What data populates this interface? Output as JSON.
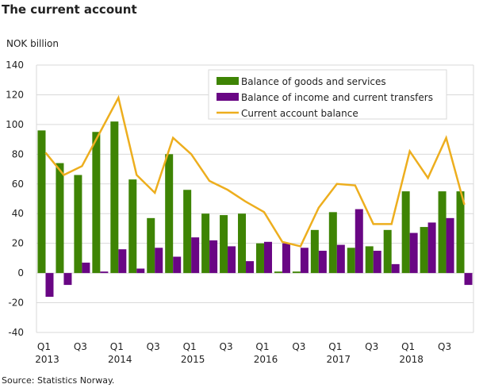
{
  "title": "The current account",
  "source": "Source: Statistics Norway.",
  "chart_data": {
    "type": "bar+line",
    "ylabel": "NOK billion",
    "ylim": [
      -40,
      140
    ],
    "yticks": [
      -40,
      -20,
      0,
      20,
      40,
      60,
      80,
      100,
      120,
      140
    ],
    "grid": true,
    "legend_position": "top-right",
    "categories": [
      "2013Q1",
      "2013Q2",
      "2013Q3",
      "2013Q4",
      "2014Q1",
      "2014Q2",
      "2014Q3",
      "2014Q4",
      "2015Q1",
      "2015Q2",
      "2015Q3",
      "2015Q4",
      "2016Q1",
      "2016Q2",
      "2016Q3",
      "2016Q4",
      "2017Q1",
      "2017Q2",
      "2017Q3",
      "2017Q4",
      "2018Q1",
      "2018Q2",
      "2018Q3",
      "2018Q4"
    ],
    "xtick_labels": [
      {
        "index": 0,
        "q": "Q1",
        "year": "2013"
      },
      {
        "index": 2,
        "q": "Q3",
        "year": ""
      },
      {
        "index": 4,
        "q": "Q1",
        "year": "2014"
      },
      {
        "index": 6,
        "q": "Q3",
        "year": ""
      },
      {
        "index": 8,
        "q": "Q1",
        "year": "2015"
      },
      {
        "index": 10,
        "q": "Q3",
        "year": ""
      },
      {
        "index": 12,
        "q": "Q1",
        "year": "2016"
      },
      {
        "index": 14,
        "q": "Q3",
        "year": ""
      },
      {
        "index": 16,
        "q": "Q1",
        "year": "2017"
      },
      {
        "index": 18,
        "q": "Q3",
        "year": ""
      },
      {
        "index": 20,
        "q": "Q1",
        "year": "2018"
      },
      {
        "index": 22,
        "q": "Q3",
        "year": ""
      }
    ],
    "series": [
      {
        "name": "Balance of goods and services",
        "type": "bar",
        "color": "#3e8404",
        "values": [
          96,
          74,
          66,
          95,
          102,
          63,
          37,
          80,
          56,
          40,
          39,
          40,
          20,
          1,
          1,
          29,
          41,
          17,
          18,
          29,
          55,
          31,
          55,
          55
        ]
      },
      {
        "name": "Balance of income and current transfers",
        "type": "bar",
        "color": "#690684",
        "values": [
          -16,
          -8,
          7,
          1,
          16,
          3,
          17,
          11,
          24,
          22,
          18,
          8,
          21,
          20,
          17,
          15,
          19,
          43,
          15,
          6,
          27,
          34,
          37,
          -8
        ]
      },
      {
        "name": "Current account balance",
        "type": "line",
        "color": "#edae1e",
        "values": [
          81,
          66,
          72,
          95,
          118,
          66,
          54,
          91,
          80,
          62,
          56,
          48,
          41,
          21,
          18,
          44,
          60,
          59,
          33,
          33,
          82,
          64,
          91,
          46
        ]
      }
    ]
  }
}
